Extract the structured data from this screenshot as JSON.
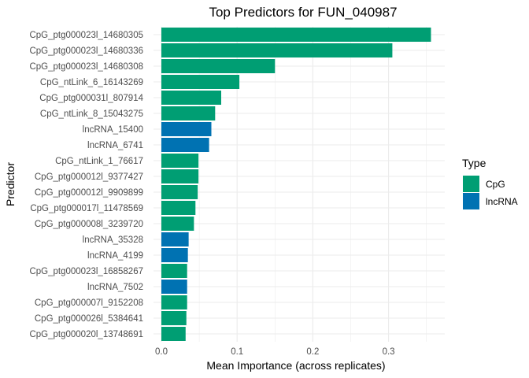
{
  "chart_data": {
    "type": "bar",
    "orientation": "horizontal",
    "title": "Top Predictors for FUN_040987",
    "xlabel": "Mean Importance (across replicates)",
    "ylabel": "Predictor",
    "xlim": [
      0,
      0.374
    ],
    "xticks": [
      "0.0",
      "0.1",
      "0.2",
      "0.3"
    ],
    "xtick_values": [
      0,
      0.1,
      0.2,
      0.3
    ],
    "grid": true,
    "legend": {
      "title": "Type",
      "position": "right",
      "entries": [
        "CpG",
        "lncRNA"
      ]
    },
    "colors": {
      "CpG": "#009E73",
      "lncRNA": "#0072B2"
    },
    "categories": [
      "CpG_ptg000023l_14680305",
      "CpG_ptg000023l_14680336",
      "CpG_ptg000023l_14680308",
      "CpG_ntLink_6_16143269",
      "CpG_ptg000031l_807914",
      "CpG_ntLink_8_15043275",
      "lncRNA_15400",
      "lncRNA_6741",
      "CpG_ntLink_1_76617",
      "CpG_ptg000012l_9377427",
      "CpG_ptg000012l_9909899",
      "CpG_ptg000017l_11478569",
      "CpG_ptg000008l_3239720",
      "lncRNA_35328",
      "lncRNA_4199",
      "CpG_ptg000023l_16858267",
      "lncRNA_7502",
      "CpG_ptg000007l_9152208",
      "CpG_ptg000026l_5384641",
      "CpG_ptg000020l_13748691"
    ],
    "types": [
      "CpG",
      "CpG",
      "CpG",
      "CpG",
      "CpG",
      "CpG",
      "lncRNA",
      "lncRNA",
      "CpG",
      "CpG",
      "CpG",
      "CpG",
      "CpG",
      "lncRNA",
      "lncRNA",
      "CpG",
      "lncRNA",
      "CpG",
      "CpG",
      "CpG"
    ],
    "values": [
      0.356,
      0.305,
      0.15,
      0.103,
      0.079,
      0.071,
      0.066,
      0.063,
      0.049,
      0.049,
      0.048,
      0.045,
      0.043,
      0.036,
      0.035,
      0.034,
      0.034,
      0.034,
      0.033,
      0.032
    ]
  }
}
